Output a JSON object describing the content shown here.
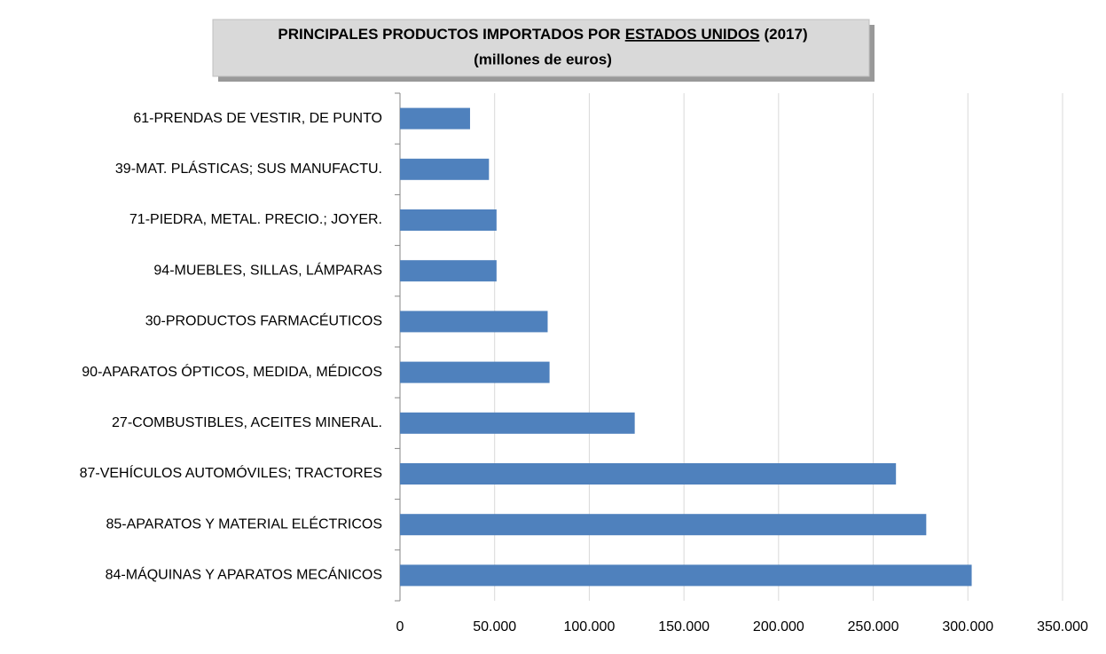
{
  "chart_data": {
    "type": "bar",
    "orientation": "horizontal",
    "title": [
      "PRINCIPALES PRODUCTOS IMPORTADOS POR",
      "ESTADOS UNIDOS",
      "(2017)"
    ],
    "subtitle": "(millones de euros)",
    "categories": [
      "61-PRENDAS DE VESTIR, DE PUNTO",
      "39-MAT. PLÁSTICAS; SUS MANUFACTU.",
      "71-PIEDRA, METAL. PRECIO.; JOYER.",
      "94-MUEBLES, SILLAS, LÁMPARAS",
      "30-PRODUCTOS FARMACÉUTICOS",
      "90-APARATOS ÓPTICOS, MEDIDA, MÉDICOS",
      "27-COMBUSTIBLES, ACEITES MINERAL.",
      "87-VEHÍCULOS AUTOMÓVILES; TRACTORES",
      "85-APARATOS Y MATERIAL ELÉCTRICOS",
      "84-MÁQUINAS Y APARATOS MECÁNICOS"
    ],
    "values": [
      37000,
      47000,
      51000,
      51000,
      78000,
      79000,
      124000,
      262000,
      278000,
      302000
    ],
    "color": "#4f81bd",
    "xlim": [
      0,
      350000
    ],
    "xticks": [
      0,
      {
        "value": 50000,
        "label": "50.000"
      },
      {
        "value": 100000,
        "label": "100.000"
      },
      {
        "value": 150000,
        "label": "150.000"
      },
      {
        "value": 200000,
        "label": "200.000"
      },
      {
        "value": 250000,
        "label": "250.000"
      },
      {
        "value": 300000,
        "label": "300.000"
      },
      {
        "value": 350000,
        "label": "350.000"
      }
    ],
    "grid": true
  }
}
